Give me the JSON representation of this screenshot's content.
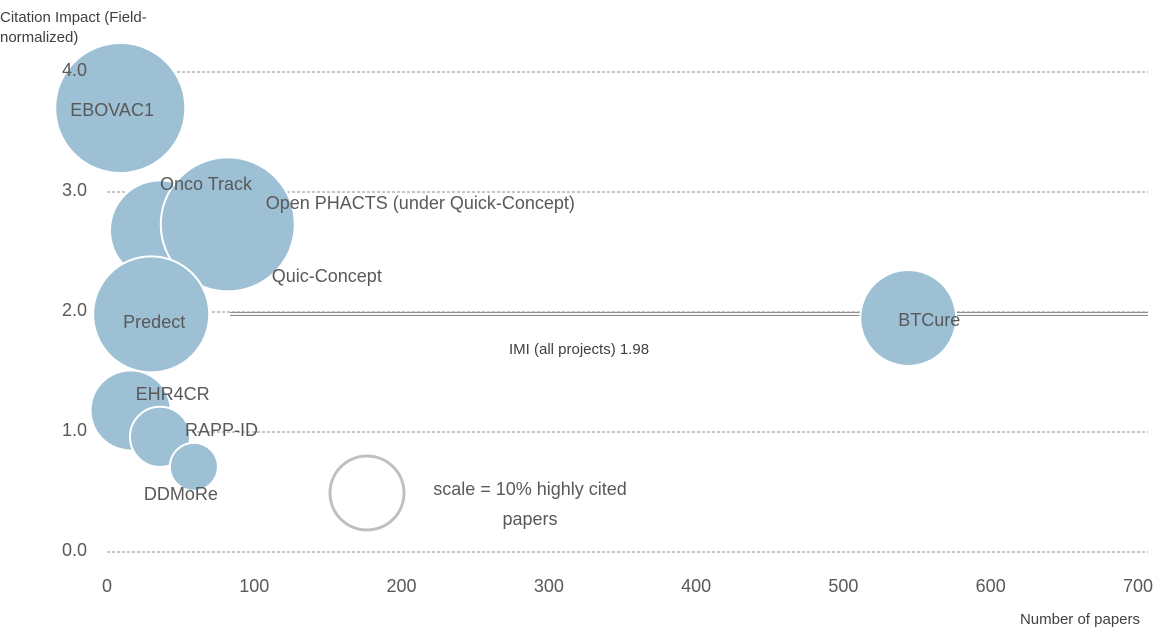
{
  "chart_data": {
    "type": "bubble",
    "y_label": "Citation Impact (Field-normalized)",
    "x_label": "Number of papers",
    "labels": [
      "EBOVAC1",
      "Onco Track",
      "Open PHACTS (under Quick-Concept)",
      "Predect",
      "EHR4CR",
      "RAPP-ID",
      "DDMoRe",
      "BTCure"
    ],
    "x": [
      9,
      36,
      82,
      30,
      16,
      36,
      59,
      544
    ],
    "values": [
      3.7,
      2.68,
      2.73,
      1.98,
      1.18,
      0.96,
      0.71,
      1.95
    ],
    "sizes": [
      30.9,
      18.3,
      32.8,
      24.6,
      11.7,
      6.6,
      4.2,
      16.8
    ],
    "color": "#9dc0d5",
    "annotation": "Quic-Concept",
    "reference_line": {
      "label": "IMI (all projects) 1.98",
      "value": 1.98
    },
    "size_legend": {
      "label": "scale = 10% highly cited papers",
      "size": 10
    },
    "xlim": [
      0,
      700
    ],
    "xticks": [
      0,
      100,
      200,
      300,
      400,
      500,
      600,
      700
    ],
    "ylim": [
      0,
      4
    ],
    "yticks": [
      {
        "value": 0,
        "label": "0.0"
      },
      {
        "value": 1,
        "label": "1.0"
      },
      {
        "value": 2,
        "label": "2.0"
      },
      {
        "value": 3,
        "label": "3.0"
      },
      {
        "value": 4,
        "label": "4.0"
      }
    ],
    "grid": true
  }
}
